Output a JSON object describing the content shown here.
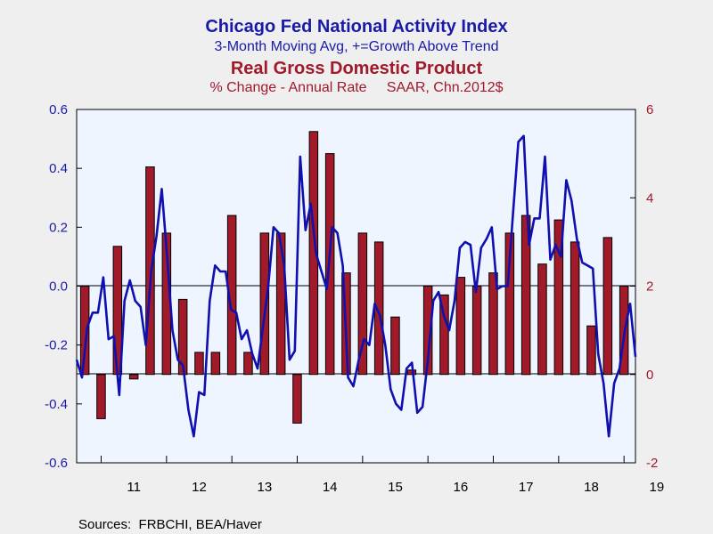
{
  "chart_data": {
    "type": "bar+line",
    "titles": [
      {
        "text": "Chicago Fed National Activity Index",
        "color": "#1a1aa8",
        "style": "main"
      },
      {
        "text": "3-Month Moving Avg, +=Growth Above Trend",
        "color": "#1a1aa8",
        "style": "sub"
      },
      {
        "text": "Real Gross Domestic Product",
        "color": "#a01a2a",
        "style": "main"
      },
      {
        "text": "% Change - Annual Rate     SAAR, Chn.2012$",
        "color": "#a01a2a",
        "style": "sub"
      }
    ],
    "source": "Sources:  FRBCHI, BEA/Haver",
    "x_labels": [
      "11",
      "12",
      "13",
      "14",
      "15",
      "16",
      "17",
      "18",
      "19"
    ],
    "left_axis": {
      "min": -0.6,
      "max": 0.6,
      "ticks": [
        "0.6",
        "0.4",
        "0.2",
        "0.0",
        "-0.2",
        "-0.4",
        "-0.6"
      ],
      "color": "#1a1aa8"
    },
    "right_axis": {
      "min": -2,
      "max": 6,
      "ticks": [
        "6",
        "4",
        "2",
        "0",
        "-2"
      ],
      "color": "#a01a2a"
    },
    "colors": {
      "line": "#1010b0",
      "bar": "#a01a2a",
      "plot_bg": "#eef5ff",
      "page_bg": "#efefef"
    },
    "series": [
      {
        "name": "Real GDP",
        "kind": "bar",
        "axis": "right",
        "values": [
          2.0,
          -1.0,
          2.9,
          -0.1,
          4.7,
          3.2,
          1.7,
          0.5,
          0.5,
          3.6,
          0.5,
          3.2,
          3.2,
          -1.1,
          5.5,
          5.0,
          2.3,
          3.2,
          3.0,
          1.3,
          0.1,
          2.0,
          1.8,
          2.2,
          2.0,
          2.3,
          3.2,
          3.6,
          2.5,
          3.5,
          3.0,
          1.1,
          3.1,
          2.0
        ]
      },
      {
        "name": "CFNAI 3-Month Moving Avg",
        "kind": "line",
        "axis": "left",
        "values": [
          -0.25,
          -0.31,
          -0.14,
          -0.09,
          -0.09,
          0.03,
          -0.18,
          -0.17,
          -0.37,
          -0.05,
          0.02,
          -0.05,
          -0.07,
          -0.2,
          0.05,
          0.17,
          0.33,
          0.1,
          -0.15,
          -0.25,
          -0.27,
          -0.42,
          -0.51,
          -0.36,
          -0.37,
          -0.05,
          0.07,
          0.05,
          0.05,
          -0.08,
          -0.09,
          -0.18,
          -0.15,
          -0.23,
          -0.28,
          -0.14,
          0.0,
          0.2,
          0.18,
          0.07,
          -0.25,
          -0.22,
          0.44,
          0.19,
          0.28,
          0.11,
          0.05,
          -0.01,
          0.2,
          0.18,
          0.07,
          -0.31,
          -0.34,
          -0.25,
          -0.18,
          -0.2,
          -0.06,
          -0.1,
          -0.2,
          -0.35,
          -0.4,
          -0.42,
          -0.28,
          -0.26,
          -0.43,
          -0.41,
          -0.25,
          -0.05,
          -0.02,
          -0.1,
          -0.15,
          -0.05,
          0.13,
          0.15,
          0.14,
          -0.02,
          0.13,
          0.16,
          0.2,
          -0.01,
          0.0,
          0.0,
          0.25,
          0.49,
          0.51,
          0.14,
          0.23,
          0.23,
          0.44,
          0.09,
          0.14,
          0.1,
          0.36,
          0.29,
          0.16,
          0.08,
          0.07,
          0.06,
          -0.23,
          -0.33,
          -0.51,
          -0.33,
          -0.28,
          -0.15,
          -0.06,
          -0.24
        ]
      }
    ]
  }
}
